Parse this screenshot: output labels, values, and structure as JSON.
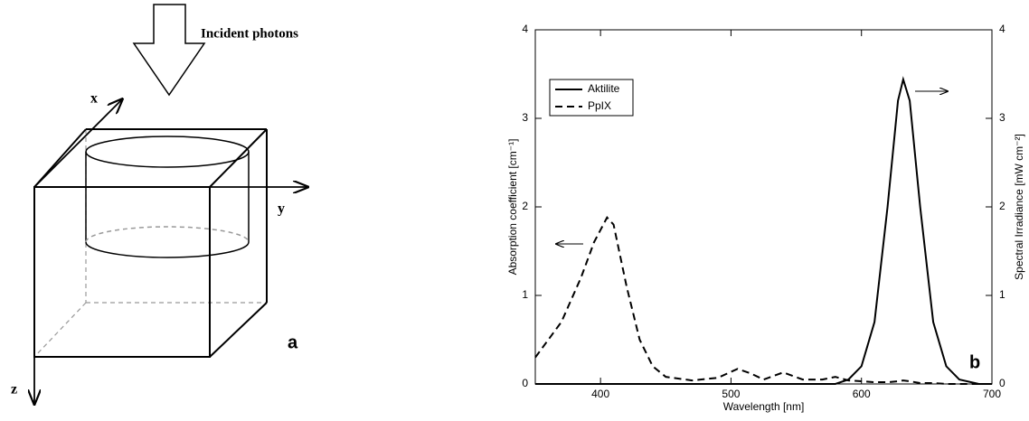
{
  "diagram": {
    "incident_label": "Incident photons",
    "axis_x": "x",
    "axis_y": "y",
    "axis_z": "z",
    "panel_label": "a"
  },
  "chart_data": {
    "type": "line",
    "panel_label": "b",
    "xlabel": "Wavelength [nm]",
    "ylabel": "Absorption coefficient [cm⁻¹]",
    "y2label": "Spectral Irradiance [mW cm⁻²]",
    "x": [
      350,
      370,
      385,
      395,
      405,
      410,
      420,
      430,
      440,
      450,
      470,
      490,
      505,
      515,
      525,
      540,
      555,
      570,
      580,
      590,
      600,
      610,
      620,
      628,
      632,
      637,
      645,
      655,
      665,
      675,
      690,
      700
    ],
    "series": [
      {
        "name": "Aktilite",
        "color": "#000000",
        "axis": "y2",
        "dash": "solid",
        "values": [
          0,
          0,
          0,
          0,
          0,
          0,
          0,
          0,
          0,
          0,
          0,
          0,
          0,
          0,
          0,
          0,
          0,
          0,
          0,
          0.05,
          0.2,
          0.7,
          2.0,
          3.2,
          3.44,
          3.2,
          2.0,
          0.7,
          0.2,
          0.05,
          0,
          0
        ]
      },
      {
        "name": "PpIX",
        "color": "#000000",
        "dash": "dashed",
        "values": [
          0.3,
          0.7,
          1.2,
          1.6,
          1.88,
          1.8,
          1.1,
          0.5,
          0.2,
          0.08,
          0.04,
          0.07,
          0.17,
          0.12,
          0.05,
          0.13,
          0.05,
          0.05,
          0.08,
          0.04,
          0.03,
          0.02,
          0.02,
          0.03,
          0.04,
          0.03,
          0.01,
          0.01,
          0,
          0,
          0,
          0
        ]
      }
    ],
    "xlim": [
      350,
      700
    ],
    "xticks": [
      400,
      500,
      600,
      700
    ],
    "ylim": [
      0,
      4
    ],
    "yticks": [
      0,
      1,
      2,
      3,
      4
    ],
    "y2lim": [
      0,
      4
    ],
    "y2ticks": [
      0,
      1,
      2,
      3,
      4
    ],
    "legend": "upper left"
  }
}
